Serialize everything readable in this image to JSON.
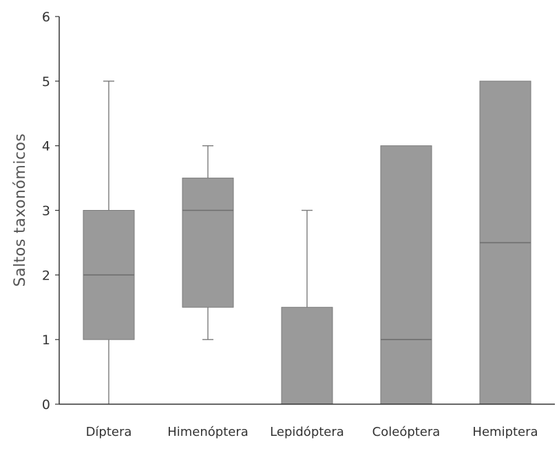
{
  "chart_data": {
    "type": "box",
    "ylabel": "Saltos taxonómicos",
    "xlabel": "",
    "ylim": [
      0,
      6
    ],
    "yticks": [
      "0",
      "1",
      "2",
      "3",
      "4",
      "5",
      "6"
    ],
    "grid": false,
    "colors": {
      "box": "#9a9a9a",
      "edge": "#7a7a7a",
      "axis": "#333333"
    },
    "categories": [
      "Díptera",
      "Himenóptera",
      "Lepidóptera",
      "Coleóptera",
      "Hemiptera"
    ],
    "boxes": [
      {
        "name": "Díptera",
        "min": 0,
        "q1": 1,
        "median": 2,
        "q3": 3,
        "max": 5
      },
      {
        "name": "Himenóptera",
        "min": 1,
        "q1": 1.5,
        "median": 3,
        "q3": 3.5,
        "max": 4
      },
      {
        "name": "Lepidóptera",
        "min": 0,
        "q1": 0,
        "median": 0,
        "q3": 1.5,
        "max": 3
      },
      {
        "name": "Coleóptera",
        "min": 0,
        "q1": 0,
        "median": 1,
        "q3": 4,
        "max": 4
      },
      {
        "name": "Hemiptera",
        "min": 0,
        "q1": 0,
        "median": 2.5,
        "q3": 5,
        "max": 5
      }
    ]
  }
}
